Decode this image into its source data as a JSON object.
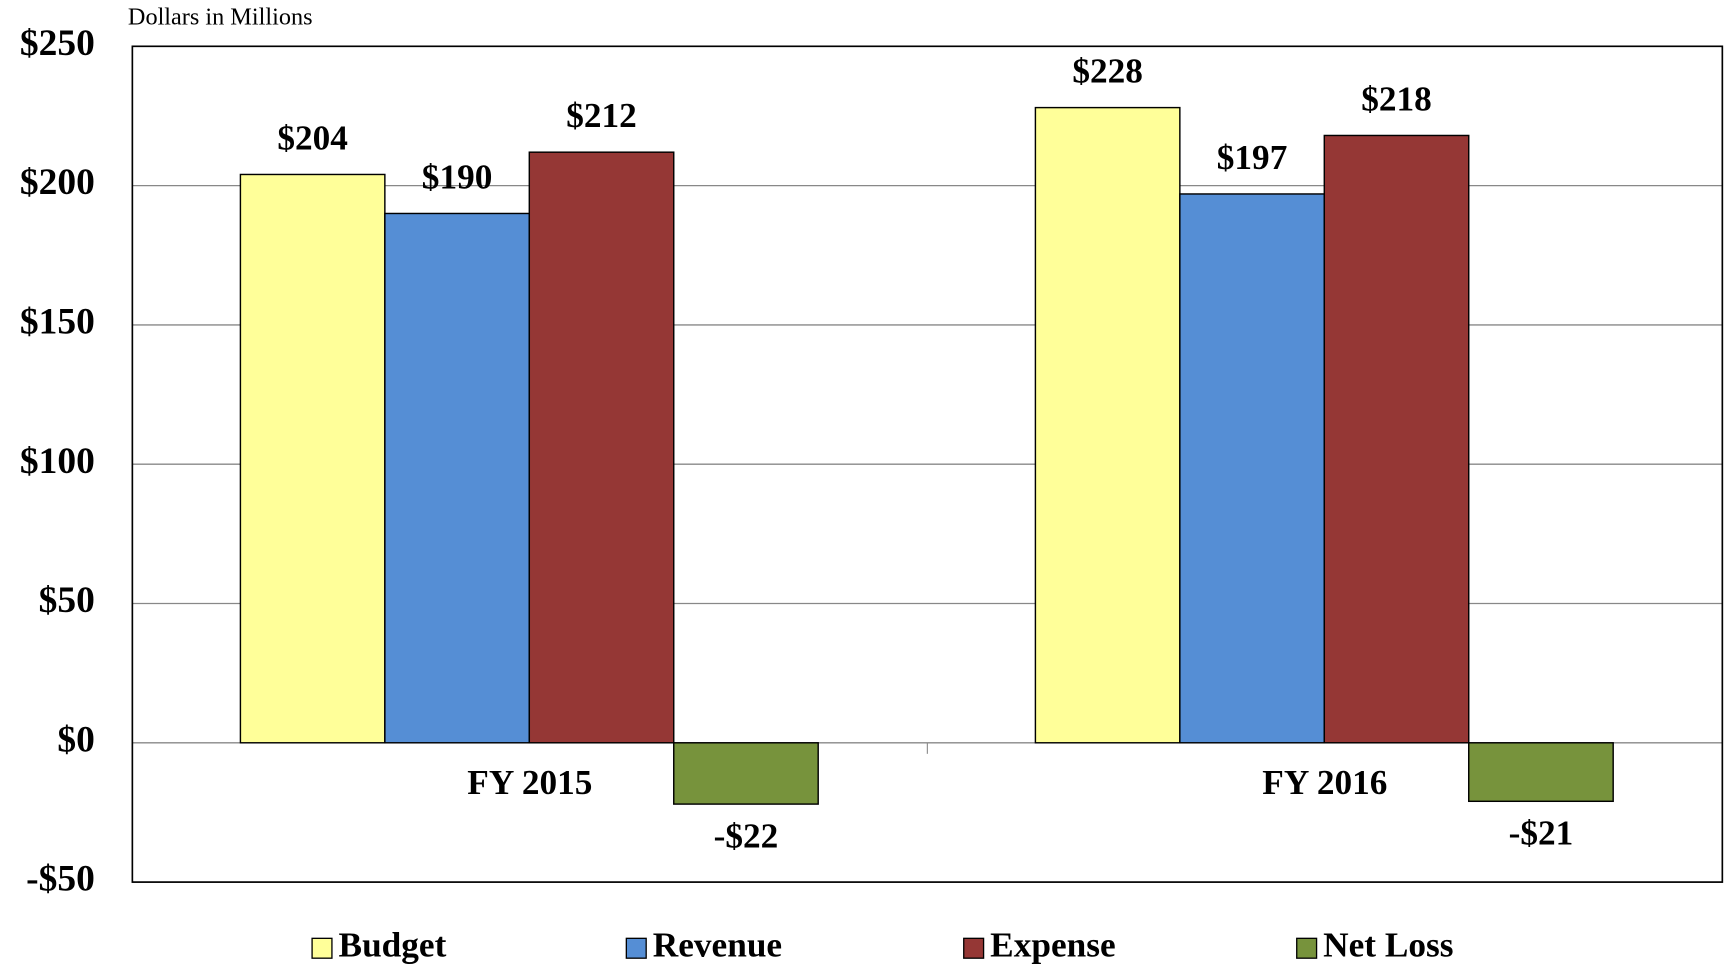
{
  "chart_data": {
    "type": "bar",
    "subtitle": "Dollars in Millions",
    "categories": [
      "FY 2015",
      "FY 2016"
    ],
    "series": [
      {
        "name": "Budget",
        "color": "#ffff99",
        "values": [
          204,
          228
        ],
        "value_labels": [
          "$204",
          "$228"
        ]
      },
      {
        "name": "Revenue",
        "color": "#558ed5",
        "values": [
          190,
          197
        ],
        "value_labels": [
          "$190",
          "$197"
        ]
      },
      {
        "name": "Expense",
        "color": "#953735",
        "values": [
          212,
          218
        ],
        "value_labels": [
          "$212",
          "$218"
        ]
      },
      {
        "name": "Net Loss",
        "color": "#77933c",
        "values": [
          -22,
          -21
        ],
        "value_labels": [
          "-$22",
          "-$21"
        ]
      }
    ],
    "ylim": [
      -50,
      250
    ],
    "yticks": [
      {
        "value": -50,
        "label": "-$50"
      },
      {
        "value": 0,
        "label": "$0"
      },
      {
        "value": 50,
        "label": "$50"
      },
      {
        "value": 100,
        "label": "$100"
      },
      {
        "value": 150,
        "label": "$150"
      },
      {
        "value": 200,
        "label": "$200"
      },
      {
        "value": 250,
        "label": "$250"
      }
    ],
    "grid": true,
    "legend": "bottom"
  }
}
